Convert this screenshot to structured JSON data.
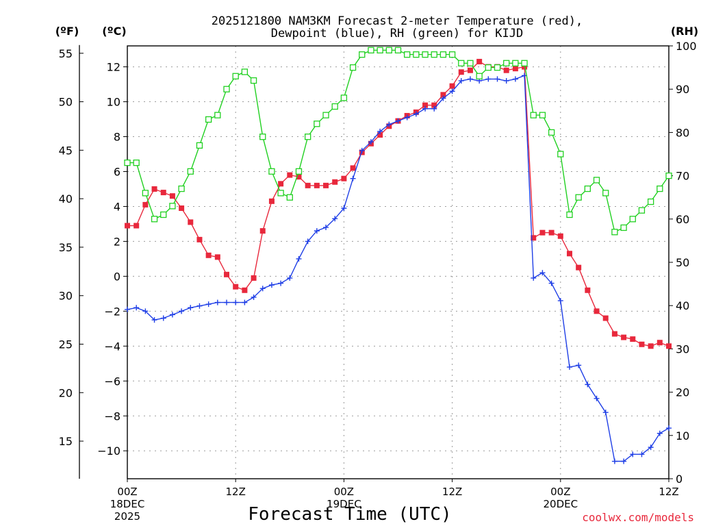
{
  "chart_data": {
    "type": "line",
    "title_line1": "2025121800 NAM3KM Forecast 2-meter Temperature (red),",
    "title_line2": "Dewpoint (blue), RH (green) for KIJD",
    "xlabel": "Forecast Time (UTC)",
    "credit": "coolwx.com/models",
    "units": {
      "f": "(ºF)",
      "c": "(ºC)",
      "rh": "(RH)"
    },
    "x_range_hours": [
      0,
      60
    ],
    "x_ticks": [
      {
        "h": 0,
        "label": "00Z",
        "sub1": "18DEC",
        "sub2": "2025"
      },
      {
        "h": 12,
        "label": "12Z",
        "sub1": "",
        "sub2": ""
      },
      {
        "h": 24,
        "label": "00Z",
        "sub1": "19DEC",
        "sub2": ""
      },
      {
        "h": 36,
        "label": "12Z",
        "sub1": "",
        "sub2": ""
      },
      {
        "h": 48,
        "label": "00Z",
        "sub1": "20DEC",
        "sub2": ""
      },
      {
        "h": 60,
        "label": "12Z",
        "sub1": "",
        "sub2": ""
      }
    ],
    "c_axis": {
      "range": [
        -11.6,
        13.2
      ],
      "ticks": [
        -10,
        -8,
        -6,
        -4,
        -2,
        0,
        2,
        4,
        6,
        8,
        10,
        12
      ]
    },
    "f_axis": {
      "ticks": [
        15,
        20,
        25,
        30,
        35,
        40,
        45,
        50,
        55
      ]
    },
    "rh_axis": {
      "range": [
        0,
        100
      ],
      "ticks": [
        0,
        10,
        20,
        30,
        40,
        50,
        60,
        70,
        80,
        90,
        100
      ]
    },
    "x_hours": [
      0,
      1,
      2,
      3,
      4,
      5,
      6,
      7,
      8,
      9,
      10,
      11,
      12,
      13,
      14,
      15,
      16,
      17,
      18,
      19,
      20,
      21,
      22,
      23,
      24,
      25,
      26,
      27,
      28,
      29,
      30,
      31,
      32,
      33,
      34,
      35,
      36,
      37,
      38,
      39,
      40,
      41,
      42,
      43,
      44,
      45,
      46,
      47,
      48,
      49,
      50,
      51,
      52,
      53,
      54,
      55,
      56,
      57,
      58,
      59,
      60
    ],
    "series": [
      {
        "name": "2-meter Temperature (°C)",
        "color": "#e8283c",
        "marker": "filled-square",
        "axis": "c",
        "values": [
          2.9,
          2.9,
          4.1,
          5.0,
          4.8,
          4.6,
          3.9,
          3.1,
          2.1,
          1.2,
          1.1,
          0.1,
          -0.6,
          -0.8,
          -0.1,
          2.6,
          4.3,
          5.3,
          5.8,
          5.7,
          5.2,
          5.2,
          5.2,
          5.4,
          5.6,
          6.2,
          7.1,
          7.6,
          8.1,
          8.6,
          8.9,
          9.2,
          9.4,
          9.8,
          9.8,
          10.4,
          10.9,
          11.7,
          11.8,
          12.3,
          12.0,
          12.0,
          11.8,
          11.9,
          12.0,
          2.2,
          2.5,
          2.5,
          2.3,
          1.3,
          0.5,
          -0.8,
          -2.0,
          -2.4,
          -3.3,
          -3.5,
          -3.6,
          -3.9,
          -4.0,
          -3.8,
          -4.0
        ]
      },
      {
        "name": "Dewpoint (°C)",
        "color": "#1e3ee6",
        "marker": "plus",
        "axis": "c",
        "values": [
          -1.9,
          -1.8,
          -2.0,
          -2.5,
          -2.4,
          -2.2,
          -2.0,
          -1.8,
          -1.7,
          -1.6,
          -1.5,
          -1.5,
          -1.5,
          -1.5,
          -1.2,
          -0.7,
          -0.5,
          -0.4,
          -0.1,
          1.0,
          2.0,
          2.6,
          2.8,
          3.3,
          3.9,
          5.6,
          7.2,
          7.7,
          8.3,
          8.7,
          8.9,
          9.1,
          9.3,
          9.6,
          9.6,
          10.2,
          10.6,
          11.2,
          11.3,
          11.2,
          11.3,
          11.3,
          11.2,
          11.3,
          11.5,
          -0.1,
          0.2,
          -0.4,
          -1.4,
          -5.2,
          -5.1,
          -6.2,
          -7.0,
          -7.8,
          -10.6,
          -10.6,
          -10.2,
          -10.2,
          -9.8,
          -9.0,
          -8.7
        ]
      },
      {
        "name": "RH (%)",
        "color": "#20d020",
        "marker": "open-square",
        "axis": "rh",
        "values": [
          73,
          73,
          66,
          60,
          61,
          63,
          67,
          71,
          77,
          83,
          84,
          90,
          93,
          94,
          92,
          79,
          71,
          66,
          65,
          71,
          79,
          82,
          84,
          86,
          88,
          95,
          98,
          99,
          99,
          99,
          99,
          98,
          98,
          98,
          98,
          98,
          98,
          96,
          96,
          93,
          95,
          95,
          96,
          96,
          96,
          84,
          84,
          80,
          75,
          61,
          65,
          67,
          69,
          66,
          57,
          58,
          60,
          62,
          64,
          67,
          70
        ]
      }
    ]
  }
}
